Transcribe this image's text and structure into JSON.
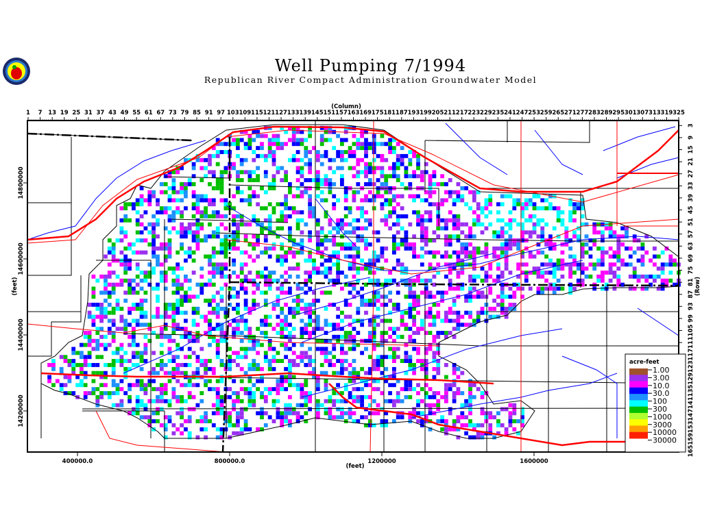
{
  "header": {
    "title": "Well Pumping 7/1994",
    "subtitle": "Republican River Compact Administration Groundwater Model",
    "logo_text": "apple seal logo"
  },
  "chart_data": {
    "type": "heatmap",
    "title": "Well Pumping 7/1994",
    "subtitle": "Republican River Compact Administration Groundwater Model",
    "top_axis_label": "(Column)",
    "right_axis_label": "(Row)",
    "xlabel": "(feet)",
    "ylabel": "(feet)",
    "column_ticks": [
      1,
      7,
      13,
      19,
      25,
      31,
      37,
      43,
      49,
      55,
      61,
      67,
      73,
      79,
      85,
      91,
      97,
      103,
      109,
      115,
      121,
      127,
      133,
      139,
      145,
      151,
      157,
      163,
      169,
      175,
      181,
      187,
      193,
      199,
      205,
      211,
      217,
      223,
      229,
      235,
      241,
      247,
      253,
      259,
      265,
      271,
      277,
      283,
      289,
      295,
      301,
      307,
      313,
      319,
      325
    ],
    "row_ticks": [
      3,
      9,
      15,
      21,
      27,
      33,
      39,
      45,
      51,
      57,
      63,
      69,
      75,
      81,
      87,
      93,
      99,
      105,
      111,
      117,
      123,
      129,
      135,
      141,
      147,
      153,
      159,
      165
    ],
    "x_ticks": [
      "400000.0",
      "800000.0",
      "1200000",
      "1600000"
    ],
    "y_ticks": [
      "14800000",
      "14600000",
      "14400000",
      "14200000"
    ],
    "legend": {
      "title": "acre-feet",
      "levels": [
        "1.00",
        "3.00",
        "10.0",
        "30.0",
        "100",
        "300",
        "1000",
        "3000",
        "10000",
        "30000"
      ],
      "colors": [
        "#a0522d",
        "#9a30f0",
        "#ff00ff",
        "#0000ff",
        "#1e90ff",
        "#00ffff",
        "#00c000",
        "#b0ff30",
        "#ffff00",
        "#ffa000",
        "#ff2000"
      ],
      "placement": "bottom-right"
    },
    "layers": {
      "county_lines": "#000000",
      "rivers": "#0000ff",
      "roads": "#ff0000"
    }
  }
}
